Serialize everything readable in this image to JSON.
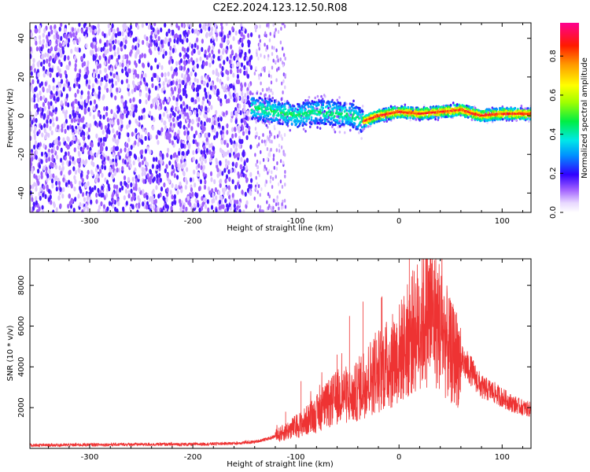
{
  "figure": {
    "title": "C2E2.2024.123.12.50.R08"
  },
  "colorbar": {
    "label": "Normalized spectral amplitude",
    "ticks": [
      0.0,
      0.2,
      0.4,
      0.6,
      0.8
    ],
    "tick_labels": [
      "0.0",
      "0.2",
      "0.4",
      "0.6",
      "0.8"
    ],
    "range": [
      0,
      0.97
    ]
  },
  "chart_data": [
    {
      "type": "heatmap",
      "xlabel": "Height of straight line (km)",
      "ylabel": "Frequency (Hz)",
      "xlim": [
        -358,
        128
      ],
      "ylim": [
        -50,
        48
      ],
      "xticks": [
        -300,
        -200,
        -100,
        0,
        100
      ],
      "xtick_labels": [
        "-300",
        "-200",
        "-100",
        "0",
        "100"
      ],
      "yticks": [
        -40,
        -20,
        0,
        20,
        40
      ],
      "ytick_labels": [
        "-40",
        "-20",
        "0",
        "20",
        "40"
      ],
      "colormap": "rainbow",
      "regions": [
        {
          "x_range": [
            -358,
            -143
          ],
          "freq_range": [
            -50,
            48
          ],
          "amplitude_range": [
            0.02,
            0.18
          ]
        },
        {
          "x_range": [
            -143,
            -35
          ],
          "freq_range": [
            -10,
            10
          ],
          "amplitude_range": [
            0.15,
            0.45
          ]
        },
        {
          "x_range": [
            -35,
            128
          ],
          "freq_range": [
            -3,
            4
          ],
          "amplitude_range": [
            0.5,
            0.97
          ]
        }
      ],
      "ridge_frequency": [
        {
          "x": -140,
          "f": 4
        },
        {
          "x": -120,
          "f": 2
        },
        {
          "x": -100,
          "f": 0
        },
        {
          "x": -80,
          "f": 2
        },
        {
          "x": -60,
          "f": 1
        },
        {
          "x": -45,
          "f": 0
        },
        {
          "x": -35,
          "f": -3
        },
        {
          "x": -20,
          "f": 0
        },
        {
          "x": 0,
          "f": 2
        },
        {
          "x": 20,
          "f": 1
        },
        {
          "x": 40,
          "f": 2
        },
        {
          "x": 60,
          "f": 3
        },
        {
          "x": 80,
          "f": 0
        },
        {
          "x": 100,
          "f": 1
        },
        {
          "x": 128,
          "f": 1
        }
      ]
    },
    {
      "type": "line",
      "xlabel": "Height of straight line (km)",
      "ylabel": "SNR (10 * v/v)",
      "xlim": [
        -358,
        128
      ],
      "ylim": [
        0,
        9300
      ],
      "xticks": [
        -300,
        -200,
        -100,
        0,
        100
      ],
      "xtick_labels": [
        "-300",
        "-200",
        "-100",
        "0",
        "100"
      ],
      "yticks": [
        2000,
        4000,
        6000,
        8000
      ],
      "ytick_labels": [
        "2000",
        "4000",
        "6000",
        "8000"
      ],
      "color": "#ee3333",
      "series": [
        {
          "x": [
            -358,
            -300,
            -250,
            -200,
            -160,
            -140,
            -125,
            -115,
            -105,
            -95,
            -85,
            -75,
            -65,
            -55,
            -45,
            -35,
            -25,
            -15,
            -5,
            5,
            10,
            20,
            30,
            40,
            50,
            60,
            70,
            80,
            90,
            100,
            110,
            120,
            128
          ],
          "y": [
            150,
            180,
            200,
            200,
            250,
            320,
            500,
            700,
            950,
            1200,
            1500,
            1900,
            2300,
            2700,
            2500,
            3200,
            3600,
            4000,
            4300,
            5000,
            5400,
            6200,
            6700,
            6000,
            4700,
            4300,
            3800,
            3000,
            2800,
            2500,
            2200,
            2000,
            1900
          ],
          "peaks": [
            {
              "x": 10,
              "y": 9300
            },
            {
              "x": -35,
              "y": 7200
            },
            {
              "x": -17,
              "y": 7400
            },
            {
              "x": -48,
              "y": 6500
            },
            {
              "x": -60,
              "y": 4600
            },
            {
              "x": -95,
              "y": 3300
            },
            {
              "x": -110,
              "y": 1800
            },
            {
              "x": 30,
              "y": 8000
            },
            {
              "x": 14,
              "y": 7000
            }
          ]
        }
      ]
    }
  ]
}
